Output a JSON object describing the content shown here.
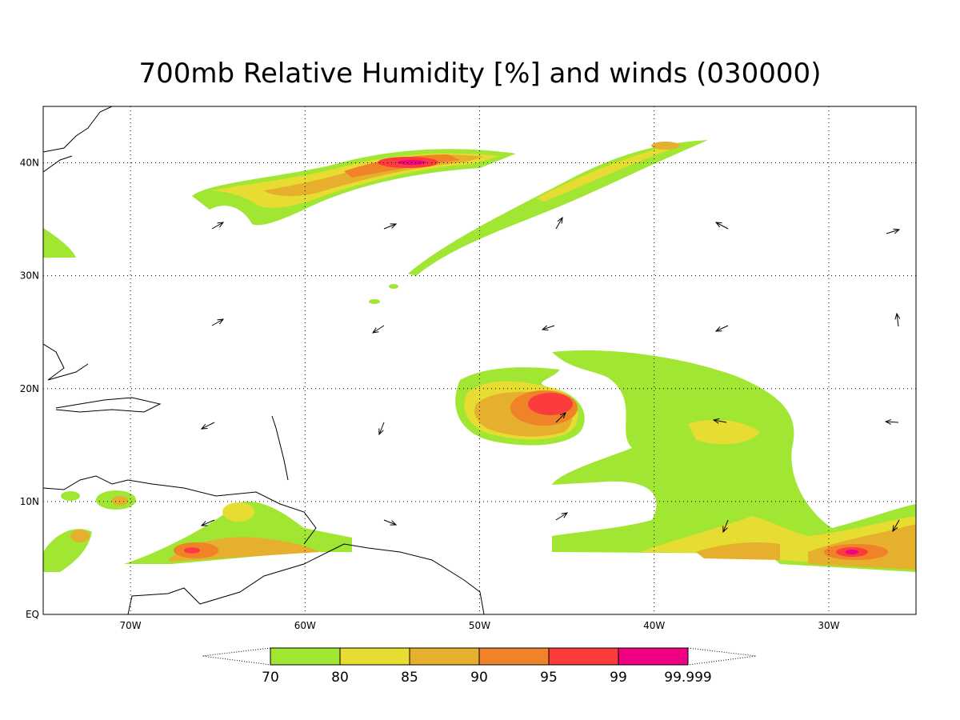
{
  "map": {
    "title": "700mb Relative Humidity [%] and winds (030000)",
    "xlim": [
      -75,
      -25
    ],
    "ylim": [
      0,
      45
    ],
    "xticks": [
      {
        "value": -70,
        "label": "70W"
      },
      {
        "value": -60,
        "label": "60W"
      },
      {
        "value": -50,
        "label": "50W"
      },
      {
        "value": -40,
        "label": "40W"
      },
      {
        "value": -30,
        "label": "30W"
      }
    ],
    "yticks": [
      {
        "value": 0,
        "label": "EQ"
      },
      {
        "value": 10,
        "label": "10N"
      },
      {
        "value": 20,
        "label": "20N"
      },
      {
        "value": 30,
        "label": "30N"
      },
      {
        "value": 40,
        "label": "40N"
      }
    ],
    "grid": true,
    "colorbar": {
      "levels": [
        70,
        80,
        85,
        90,
        95,
        99,
        99.999
      ],
      "colors": [
        "#a0e632",
        "#e6dc32",
        "#e6af2d",
        "#f08228",
        "#fa3c3c",
        "#f00082"
      ]
    }
  }
}
